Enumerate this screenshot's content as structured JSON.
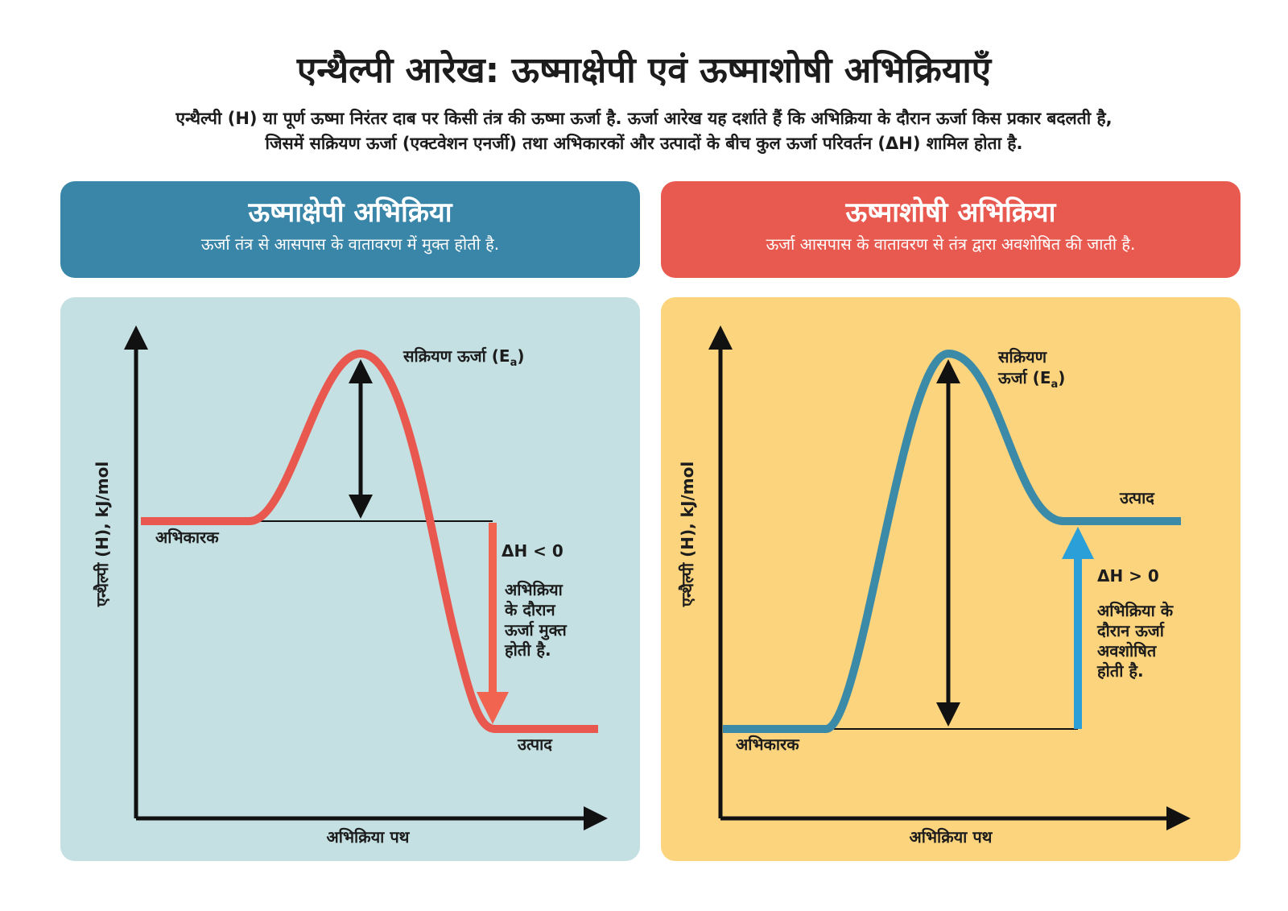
{
  "header": {
    "title": "एन्थैल्पी आरेख: ऊष्माक्षेपी एवं ऊष्माशोषी अभिक्रियाएँ",
    "description": [
      "एन्थैल्पी (H) या पूर्ण ऊष्मा निरंतर दाब पर किसी तंत्र की ऊष्मा ऊर्जा है. ऊर्जा आरेख यह दर्शाते हैं कि अभिक्रिया के दौरान ऊर्जा किस प्रकार बदलती है,",
      "जिसमें सक्रियण ऊर्जा (एक्टवेशन एनर्जी) तथा अभिकारकों और उत्पादों के बीच कुल ऊर्जा परिवर्तन (ΔH) शामिल होता है."
    ]
  },
  "panels": [
    {
      "title": "ऊष्माक्षेपी अभिक्रिया",
      "subtitle": "ऊर्जा तंत्र से आसपास के वातावरण में मुक्त होती है.",
      "y_axis": "एन्थैल्पी (H), kJ/mol",
      "x_axis": "अभिक्रिया पथ",
      "activation": {
        "lines": [
          "सक्रियण ऊर्जा (E"
        ],
        "subscript": "a",
        "close": ")"
      },
      "reactants": "अभिकारक",
      "products": "उत्पाद",
      "delta": "ΔH < 0",
      "note": [
        "अभिक्रिया",
        "के दौरान",
        "ऊर्जा मुक्त",
        "होती है."
      ]
    },
    {
      "title": "ऊष्माशोषी अभिक्रिया",
      "subtitle": "ऊर्जा आसपास के वातावरण से तंत्र द्वारा अवशोषित की जाती है.",
      "y_axis": "एन्थैल्पी (H), kJ/mol",
      "x_axis": "अभिक्रिया पथ",
      "activation": {
        "lines": [
          "सक्रियण",
          "ऊर्जा (E"
        ],
        "subscript": "a",
        "close": ")"
      },
      "reactants": "अभिकारक",
      "products": "उत्पाद",
      "delta": "ΔH > 0",
      "note": [
        "अभिक्रिया के",
        "दौरान ऊर्जा",
        "अवशोषित",
        "होती है."
      ]
    }
  ]
}
